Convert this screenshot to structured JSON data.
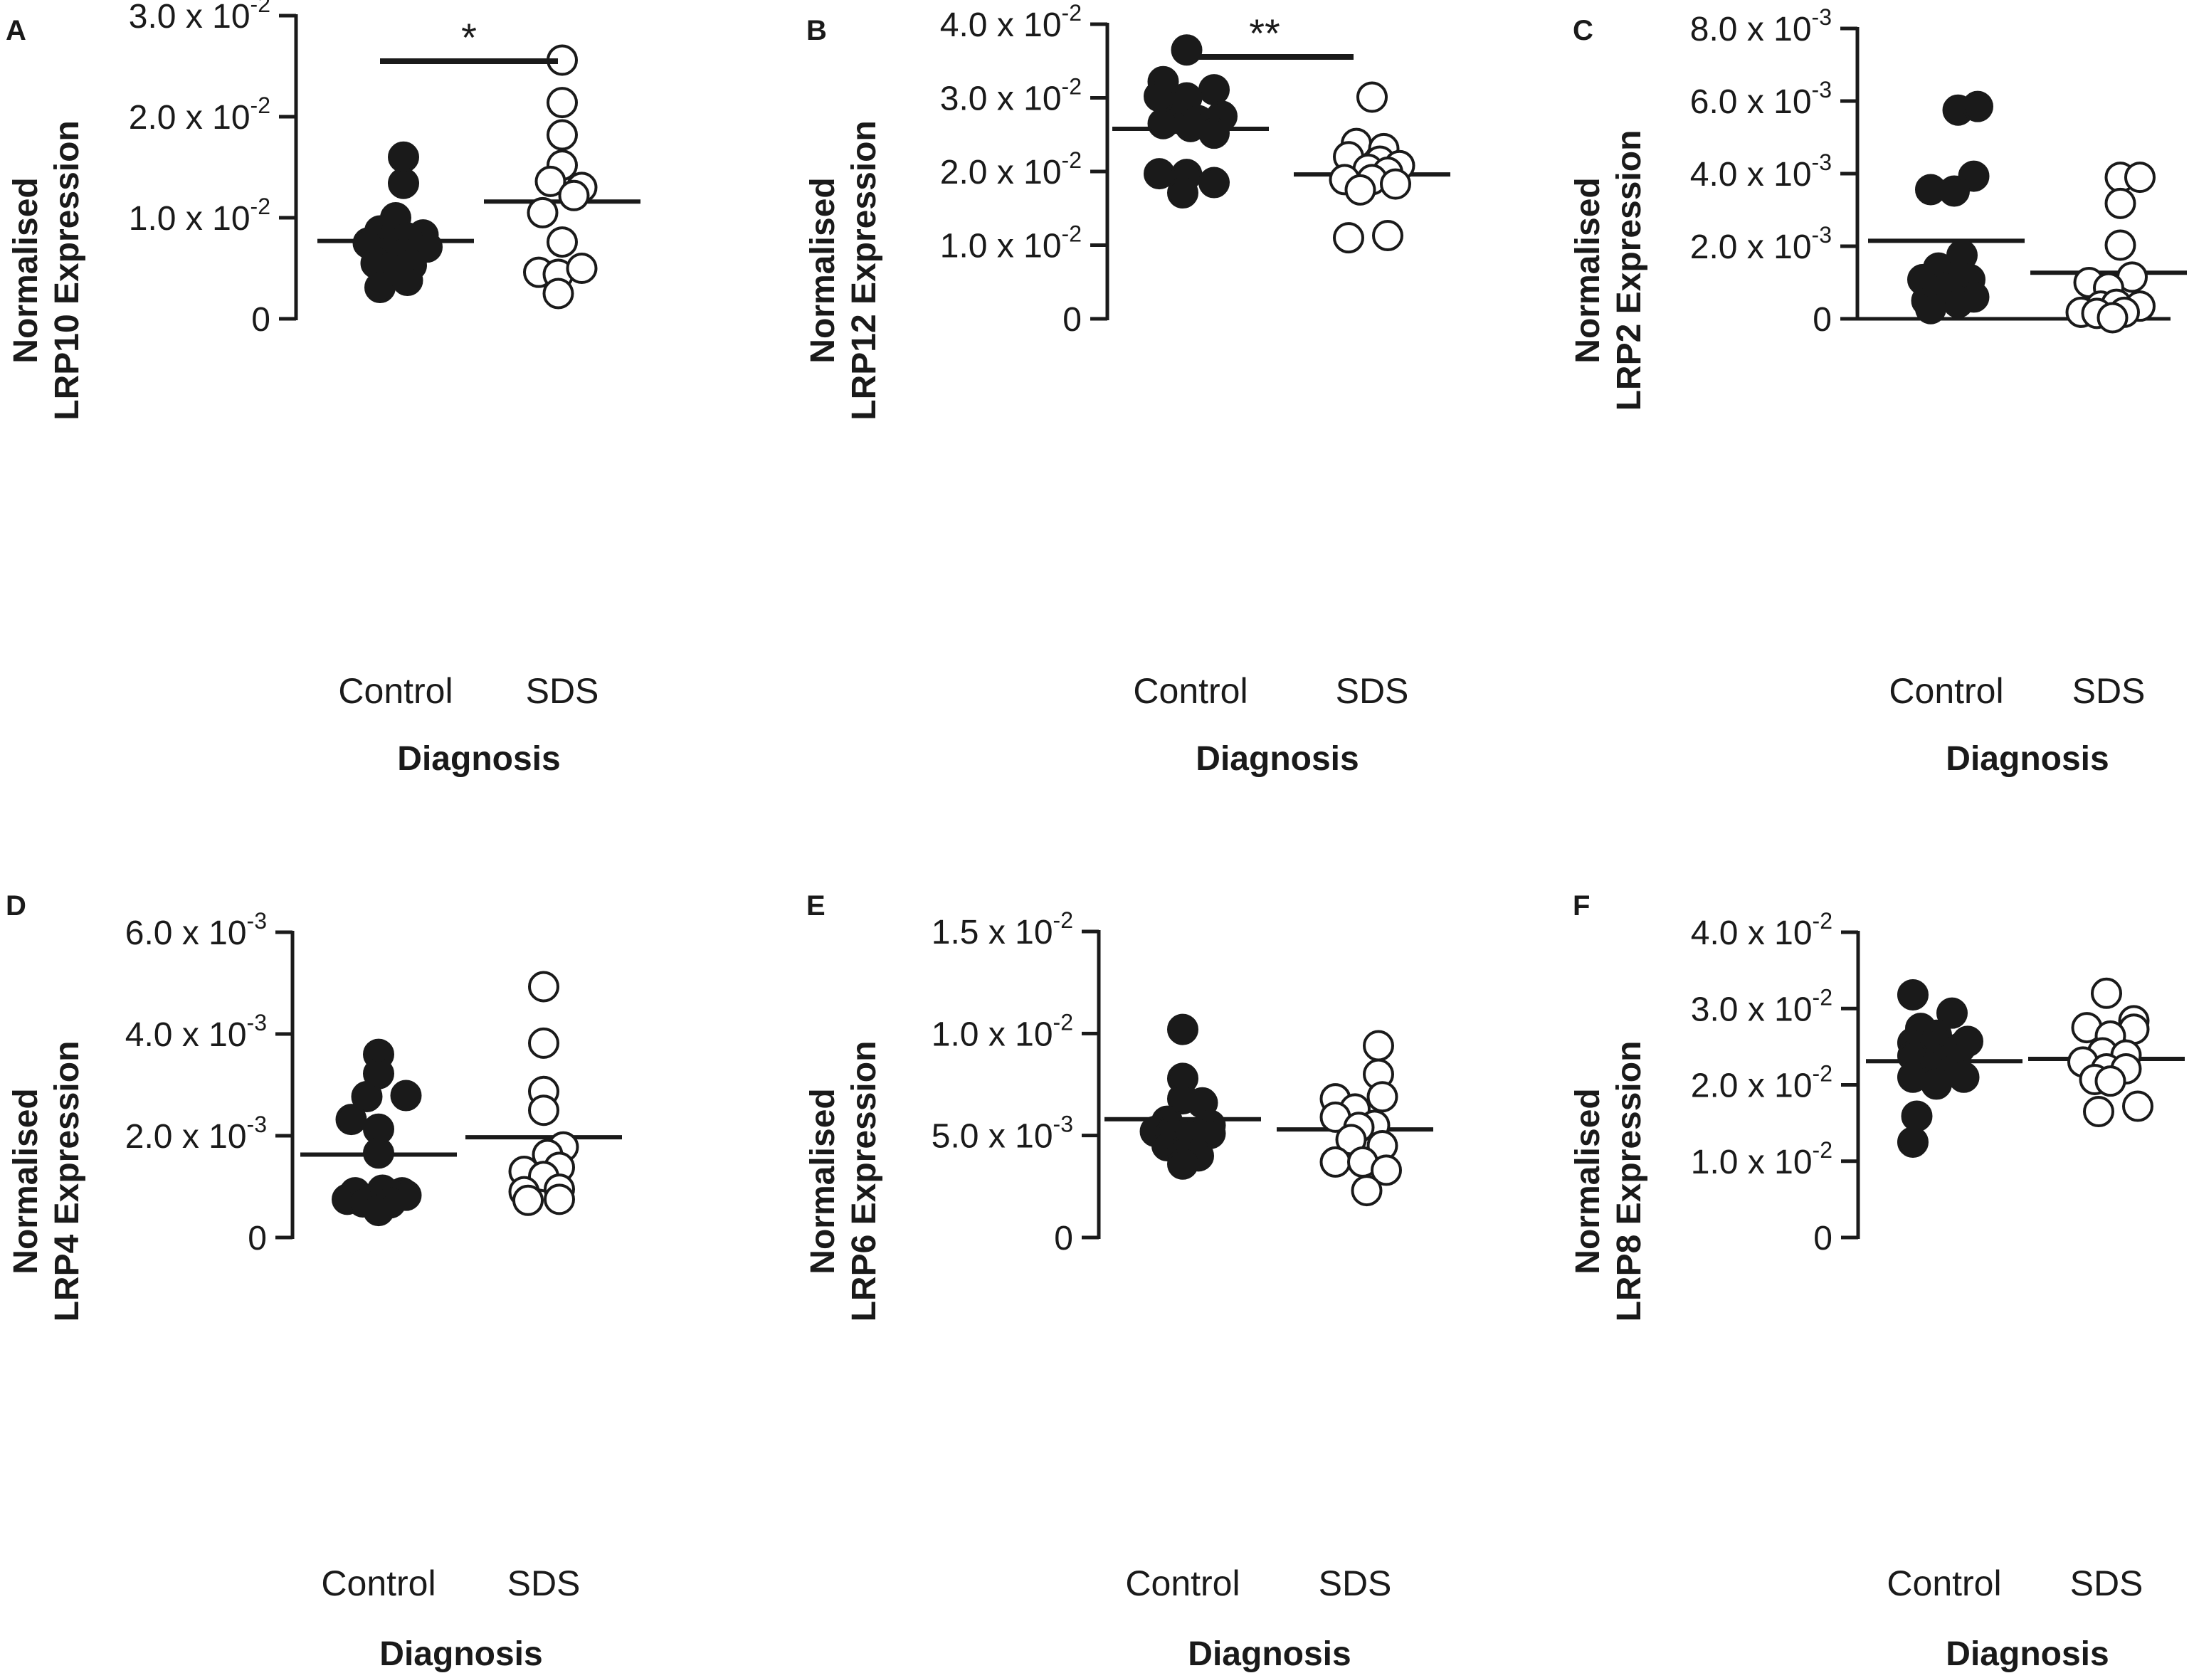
{
  "chart_data": [
    {
      "type": "scatter",
      "panel": "A",
      "ylabel_line1": "Normalised",
      "ylabel_line2": "LRP10 Expression",
      "xlabel": "Diagnosis",
      "categories": [
        "Control",
        "SDS"
      ],
      "ylim": [
        0,
        0.03
      ],
      "yticks": [
        {
          "value": 0,
          "mantissa": "0",
          "exponent": ""
        },
        {
          "value": 0.01,
          "mantissa": "1.0 x 10",
          "exponent": "-2"
        },
        {
          "value": 0.02,
          "mantissa": "2.0 x 10",
          "exponent": "-2"
        },
        {
          "value": 0.03,
          "mantissa": "3.0 x 10",
          "exponent": "-2"
        }
      ],
      "series": [
        {
          "name": "Control",
          "style": "filled",
          "mean": 0.0077,
          "points": [
            [
              0.1,
              0.016
            ],
            [
              0.1,
              0.0134
            ],
            [
              0.0,
              0.01
            ],
            [
              -0.2,
              0.0087
            ],
            [
              0.35,
              0.0083
            ],
            [
              -0.1,
              0.0078
            ],
            [
              0.15,
              0.008
            ],
            [
              0.4,
              0.0071
            ],
            [
              -0.35,
              0.0075
            ],
            [
              0.1,
              0.0067
            ],
            [
              -0.25,
              0.0055
            ],
            [
              0.2,
              0.0053
            ],
            [
              -0.05,
              0.0051
            ],
            [
              -0.2,
              0.0031
            ],
            [
              0.15,
              0.0038
            ]
          ]
        },
        {
          "name": "SDS",
          "style": "filled_open",
          "mean": 0.0116,
          "points": [
            [
              0.0,
              0.0256
            ],
            [
              0.0,
              0.0214
            ],
            [
              0.0,
              0.0182
            ],
            [
              0.0,
              0.0152
            ],
            [
              -0.15,
              0.0136
            ],
            [
              0.25,
              0.013
            ],
            [
              0.15,
              0.0122
            ],
            [
              -0.25,
              0.0105
            ],
            [
              0.0,
              0.0076
            ],
            [
              -0.3,
              0.0046
            ],
            [
              -0.05,
              0.0044
            ],
            [
              0.25,
              0.005
            ],
            [
              -0.05,
              0.0025
            ]
          ]
        }
      ],
      "significance": {
        "label": "*"
      }
    },
    {
      "type": "scatter",
      "panel": "B",
      "ylabel_line1": "Normalised",
      "ylabel_line2": "LRP12 Expression",
      "xlabel": "Diagnosis",
      "categories": [
        "Control",
        "SDS"
      ],
      "ylim": [
        0,
        0.04
      ],
      "yticks": [
        {
          "value": 0,
          "mantissa": "0",
          "exponent": ""
        },
        {
          "value": 0.01,
          "mantissa": "1.0 x 10",
          "exponent": "-2"
        },
        {
          "value": 0.02,
          "mantissa": "2.0 x 10",
          "exponent": "-2"
        },
        {
          "value": 0.03,
          "mantissa": "3.0 x 10",
          "exponent": "-2"
        },
        {
          "value": 0.04,
          "mantissa": "4.0 x 10",
          "exponent": "-2"
        }
      ],
      "series": [
        {
          "name": "Control",
          "style": "filled",
          "mean": 0.0258,
          "points": [
            [
              -0.05,
              0.0365
            ],
            [
              -0.35,
              0.0322
            ],
            [
              0.3,
              0.0311
            ],
            [
              -0.4,
              0.0302
            ],
            [
              -0.05,
              0.03
            ],
            [
              -0.15,
              0.0272
            ],
            [
              0.1,
              0.0269
            ],
            [
              0.4,
              0.0275
            ],
            [
              -0.35,
              0.0265
            ],
            [
              0.0,
              0.0261
            ],
            [
              0.3,
              0.0252
            ],
            [
              -0.4,
              0.0197
            ],
            [
              -0.05,
              0.0196
            ],
            [
              0.3,
              0.0185
            ],
            [
              -0.1,
              0.0171
            ]
          ]
        },
        {
          "name": "SDS",
          "style": "open",
          "mean": 0.0196,
          "points": [
            [
              0.0,
              0.0301
            ],
            [
              -0.2,
              0.0238
            ],
            [
              0.15,
              0.0231
            ],
            [
              -0.3,
              0.022
            ],
            [
              0.1,
              0.0214
            ],
            [
              0.35,
              0.0208
            ],
            [
              -0.05,
              0.0203
            ],
            [
              0.2,
              0.0199
            ],
            [
              -0.35,
              0.0189
            ],
            [
              0.0,
              0.0189
            ],
            [
              0.3,
              0.0183
            ],
            [
              -0.15,
              0.0175
            ],
            [
              -0.3,
              0.011
            ],
            [
              0.2,
              0.0113
            ]
          ]
        }
      ],
      "significance": {
        "label": "**"
      }
    },
    {
      "type": "scatter",
      "panel": "C",
      "ylabel_line1": "Normalised",
      "ylabel_line2": "LRP2 Expression",
      "xlabel": "Diagnosis",
      "categories": [
        "Control",
        "SDS"
      ],
      "ylim": [
        0,
        0.008
      ],
      "yticks": [
        {
          "value": 0,
          "mantissa": "0",
          "exponent": ""
        },
        {
          "value": 0.002,
          "mantissa": "2.0 x 10",
          "exponent": "-3"
        },
        {
          "value": 0.004,
          "mantissa": "4.0 x 10",
          "exponent": "-3"
        },
        {
          "value": 0.006,
          "mantissa": "6.0 x 10",
          "exponent": "-3"
        },
        {
          "value": 0.008,
          "mantissa": "8.0 x 10",
          "exponent": "-3"
        }
      ],
      "series": [
        {
          "name": "Control",
          "style": "filled",
          "mean": 0.00215,
          "points": [
            [
              0.15,
              0.00575
            ],
            [
              0.4,
              0.00585
            ],
            [
              0.35,
              0.00393
            ],
            [
              -0.2,
              0.00356
            ],
            [
              0.1,
              0.00352
            ],
            [
              0.2,
              0.00175
            ],
            [
              -0.1,
              0.0014
            ],
            [
              0.15,
              0.00118
            ],
            [
              -0.3,
              0.00108
            ],
            [
              0.3,
              0.00108
            ],
            [
              -0.05,
              0.00085
            ],
            [
              0.35,
              0.0006
            ],
            [
              -0.25,
              0.0005
            ],
            [
              0.15,
              0.00045
            ],
            [
              -0.2,
              0.00028
            ]
          ]
        },
        {
          "name": "SDS",
          "style": "open",
          "mean": 0.00127,
          "points": [
            [
              0.15,
              0.0039
            ],
            [
              0.4,
              0.0039
            ],
            [
              0.15,
              0.00318
            ],
            [
              0.15,
              0.00203
            ],
            [
              0.3,
              0.00115
            ],
            [
              -0.25,
              0.001
            ],
            [
              0.0,
              0.00085
            ],
            [
              -0.1,
              0.00035
            ],
            [
              0.1,
              0.0004
            ],
            [
              0.4,
              0.00035
            ],
            [
              -0.35,
              0.00018
            ],
            [
              -0.15,
              0.00015
            ],
            [
              0.2,
              0.00018
            ],
            [
              0.05,
              3e-05
            ]
          ]
        }
      ]
    },
    {
      "type": "scatter",
      "panel": "D",
      "ylabel_line1": "Normalised",
      "ylabel_line2": "LRP4 Expression",
      "xlabel": "Diagnosis",
      "categories": [
        "Control",
        "SDS"
      ],
      "ylim": [
        0,
        0.006
      ],
      "yticks": [
        {
          "value": 0,
          "mantissa": "0",
          "exponent": ""
        },
        {
          "value": 0.002,
          "mantissa": "2.0 x 10",
          "exponent": "-3"
        },
        {
          "value": 0.004,
          "mantissa": "4.0 x 10",
          "exponent": "-3"
        },
        {
          "value": 0.006,
          "mantissa": "6.0 x 10",
          "exponent": "-3"
        }
      ],
      "series": [
        {
          "name": "Control",
          "style": "filled",
          "mean": 0.00163,
          "points": [
            [
              0.0,
              0.0036
            ],
            [
              0.0,
              0.00322
            ],
            [
              -0.15,
              0.00277
            ],
            [
              0.35,
              0.00279
            ],
            [
              -0.35,
              0.00232
            ],
            [
              0.0,
              0.00213
            ],
            [
              0.0,
              0.00166
            ],
            [
              0.05,
              0.00093
            ],
            [
              -0.3,
              0.00088
            ],
            [
              0.3,
              0.00088
            ],
            [
              -0.4,
              0.00075
            ],
            [
              0.35,
              0.00083
            ],
            [
              -0.2,
              0.0007
            ],
            [
              0.15,
              0.00068
            ],
            [
              0.0,
              0.00053
            ]
          ]
        },
        {
          "name": "SDS",
          "style": "open",
          "mean": 0.00197,
          "points": [
            [
              0.0,
              0.00493
            ],
            [
              0.0,
              0.00382
            ],
            [
              0.0,
              0.00287
            ],
            [
              0.0,
              0.0025
            ],
            [
              0.25,
              0.00178
            ],
            [
              0.05,
              0.00163
            ],
            [
              -0.25,
              0.0013
            ],
            [
              0.2,
              0.00138
            ],
            [
              0.0,
              0.0012
            ],
            [
              -0.25,
              0.0009
            ],
            [
              0.2,
              0.00095
            ],
            [
              -0.2,
              0.00073
            ],
            [
              0.2,
              0.00075
            ]
          ]
        }
      ]
    },
    {
      "type": "scatter",
      "panel": "E",
      "ylabel_line1": "Normalised",
      "ylabel_line2": "LRP6 Expression",
      "xlabel": "Diagnosis",
      "categories": [
        "Control",
        "SDS"
      ],
      "ylim": [
        0,
        0.015
      ],
      "yticks": [
        {
          "value": 0,
          "mantissa": "0",
          "exponent": ""
        },
        {
          "value": 0.005,
          "mantissa": "5.0 x 10",
          "exponent": "-3"
        },
        {
          "value": 0.01,
          "mantissa": "1.0 x 10",
          "exponent": "-2"
        },
        {
          "value": 0.015,
          "mantissa": "1.5 x 10",
          "exponent": "-2"
        }
      ],
      "series": [
        {
          "name": "Control",
          "style": "filled",
          "mean": 0.0058,
          "points": [
            [
              0.0,
              0.0102
            ],
            [
              0.0,
              0.0078
            ],
            [
              0.0,
              0.0068
            ],
            [
              0.25,
              0.0066
            ],
            [
              -0.2,
              0.0057
            ],
            [
              0.35,
              0.0055
            ],
            [
              -0.35,
              0.0052
            ],
            [
              -0.15,
              0.0051
            ],
            [
              0.1,
              0.0051
            ],
            [
              0.35,
              0.0051
            ],
            [
              -0.2,
              0.0045
            ],
            [
              0.0,
              0.0042
            ],
            [
              0.2,
              0.004
            ],
            [
              0.0,
              0.0036
            ]
          ]
        },
        {
          "name": "SDS",
          "style": "open",
          "mean": 0.0053,
          "points": [
            [
              0.3,
              0.0094
            ],
            [
              0.3,
              0.008
            ],
            [
              -0.25,
              0.0068
            ],
            [
              0.35,
              0.0069
            ],
            [
              0.0,
              0.0063
            ],
            [
              -0.25,
              0.0059
            ],
            [
              0.25,
              0.0055
            ],
            [
              0.05,
              0.0054
            ],
            [
              -0.05,
              0.0048
            ],
            [
              0.35,
              0.0045
            ],
            [
              -0.25,
              0.0037
            ],
            [
              0.1,
              0.0037
            ],
            [
              0.4,
              0.0033
            ],
            [
              0.15,
              0.0023
            ]
          ]
        }
      ]
    },
    {
      "type": "scatter",
      "panel": "F",
      "ylabel_line1": "Normalised",
      "ylabel_line2": "LRP8 Expression",
      "xlabel": "Diagnosis",
      "categories": [
        "Control",
        "SDS"
      ],
      "ylim": [
        0,
        0.04
      ],
      "yticks": [
        {
          "value": 0,
          "mantissa": "0",
          "exponent": ""
        },
        {
          "value": 0.01,
          "mantissa": "1.0 x 10",
          "exponent": "-2"
        },
        {
          "value": 0.02,
          "mantissa": "2.0 x 10",
          "exponent": "-2"
        },
        {
          "value": 0.03,
          "mantissa": "3.0 x 10",
          "exponent": "-2"
        },
        {
          "value": 0.04,
          "mantissa": "4.0 x 10",
          "exponent": "-2"
        }
      ],
      "series": [
        {
          "name": "Control",
          "style": "filled",
          "mean": 0.0231,
          "points": [
            [
              -0.4,
              0.0318
            ],
            [
              0.1,
              0.0294
            ],
            [
              -0.3,
              0.0274
            ],
            [
              -0.1,
              0.0265
            ],
            [
              0.3,
              0.0257
            ],
            [
              -0.4,
              0.0255
            ],
            [
              -0.05,
              0.0252
            ],
            [
              0.2,
              0.0248
            ],
            [
              -0.4,
              0.0238
            ],
            [
              0.05,
              0.0236
            ],
            [
              -0.2,
              0.0222
            ],
            [
              0.1,
              0.0218
            ],
            [
              -0.4,
              0.021
            ],
            [
              0.25,
              0.021
            ],
            [
              -0.1,
              0.0201
            ],
            [
              -0.35,
              0.0159
            ],
            [
              -0.4,
              0.0125
            ]
          ]
        },
        {
          "name": "SDS",
          "style": "open",
          "mean": 0.0234,
          "points": [
            [
              0.0,
              0.032
            ],
            [
              0.35,
              0.0284
            ],
            [
              -0.25,
              0.0275
            ],
            [
              0.35,
              0.0273
            ],
            [
              0.05,
              0.0264
            ],
            [
              -0.05,
              0.0242
            ],
            [
              0.25,
              0.0239
            ],
            [
              -0.3,
              0.023
            ],
            [
              0.0,
              0.0221
            ],
            [
              0.25,
              0.0221
            ],
            [
              -0.15,
              0.0207
            ],
            [
              0.05,
              0.0205
            ],
            [
              -0.1,
              0.0165
            ],
            [
              0.4,
              0.0172
            ]
          ]
        }
      ]
    }
  ]
}
